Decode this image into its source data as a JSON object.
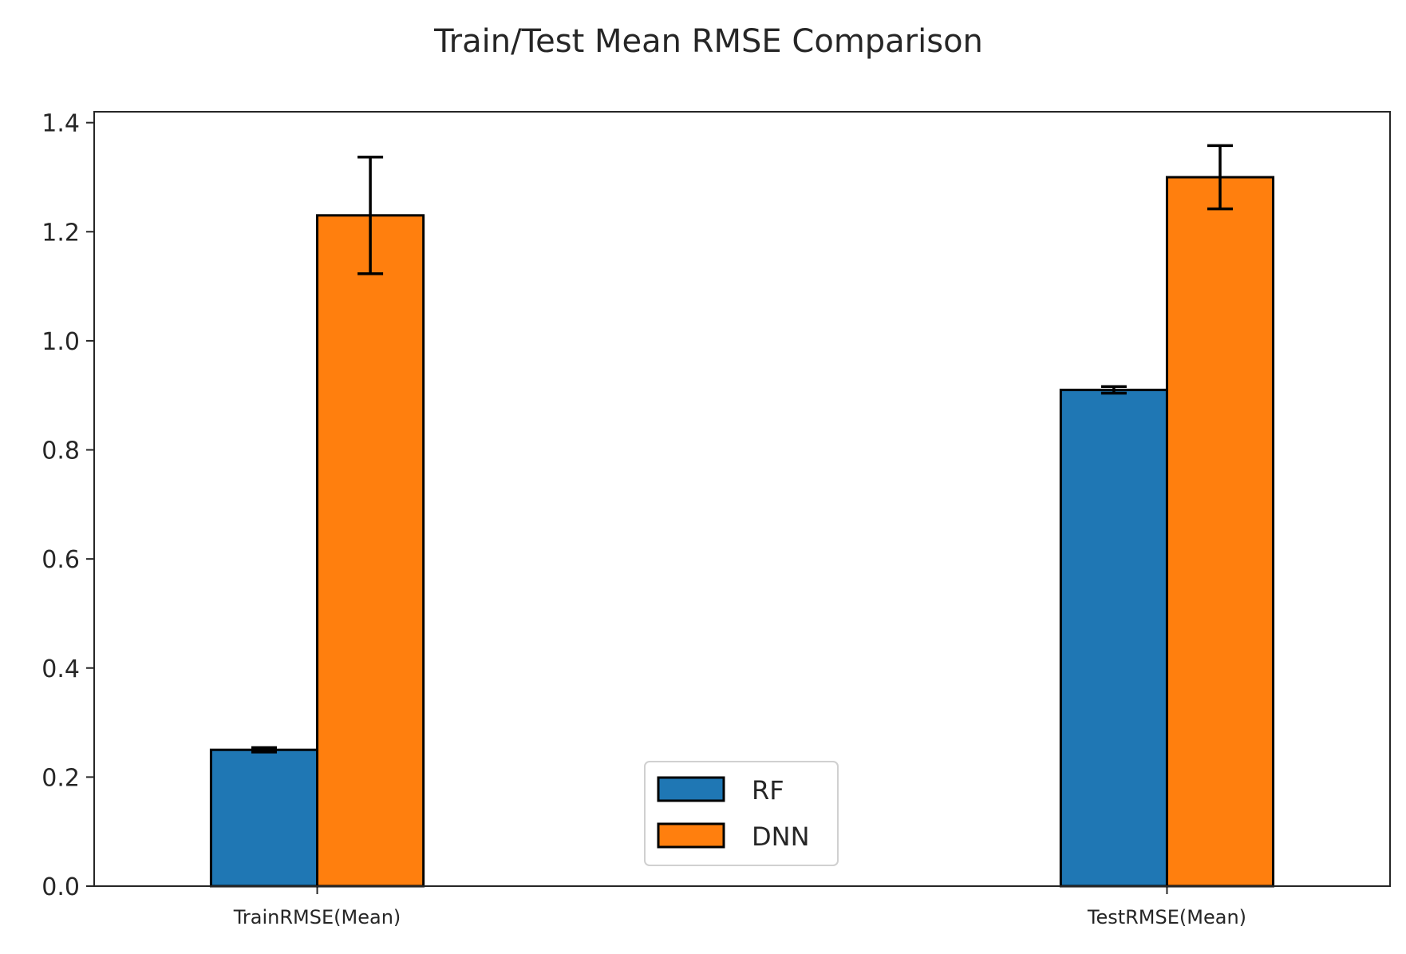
{
  "chart_data": {
    "type": "bar",
    "title": "Train/Test Mean RMSE Comparison",
    "xlabel": "",
    "ylabel": "",
    "categories": [
      "TrainRMSE(Mean)",
      "TestRMSE(Mean)"
    ],
    "series": [
      {
        "name": "RF",
        "color": "#1f77b4",
        "values": [
          0.25,
          0.91
        ],
        "errors": [
          0.004,
          0.006
        ]
      },
      {
        "name": "DNN",
        "color": "#ff7f0e",
        "values": [
          1.23,
          1.3
        ],
        "errors": [
          0.107,
          0.058
        ]
      }
    ],
    "ylim": [
      0,
      1.42
    ],
    "yticks": [
      0.0,
      0.2,
      0.4,
      0.6,
      0.8,
      1.0,
      1.2,
      1.4
    ],
    "ytick_labels": [
      "0.0",
      "0.2",
      "0.4",
      "0.6",
      "0.8",
      "1.0",
      "1.2",
      "1.4"
    ],
    "grid": false,
    "legend_position": "lower center"
  }
}
